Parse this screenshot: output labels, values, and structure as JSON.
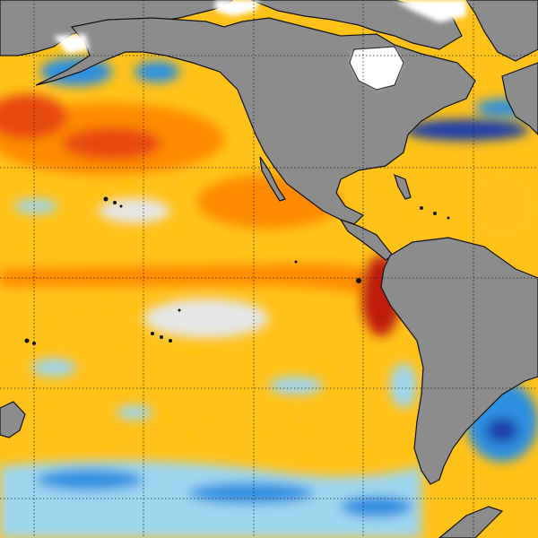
{
  "map": {
    "grid": {
      "visible": true,
      "style": "dotted",
      "color": "#222222"
    },
    "colors": {
      "land": "#8c8c8c",
      "coastline": "#111111",
      "ice": "#ffffff",
      "anomaly_scale": {
        "strong_cool": "#1e3fa8",
        "cool": "#2f8fe0",
        "slight_cool": "#9ed6f0",
        "neutral": "#e6e6e6",
        "slight_warm": "#fff04a",
        "warm": "#ffc21a",
        "hot": "#ff8a00",
        "very_hot": "#e84a10",
        "extreme": "#c01a0a"
      }
    },
    "landmasses": [
      "north-america",
      "south-america",
      "greenland",
      "arctic-islands",
      "eastern-asia",
      "new-zealand",
      "antarctic-peninsula",
      "western-europe-africa"
    ],
    "features": [
      "equatorial-warm-tongue",
      "north-pacific-warm-blob",
      "gulf-stream-cool-patches",
      "southern-ocean-cool-band"
    ]
  }
}
